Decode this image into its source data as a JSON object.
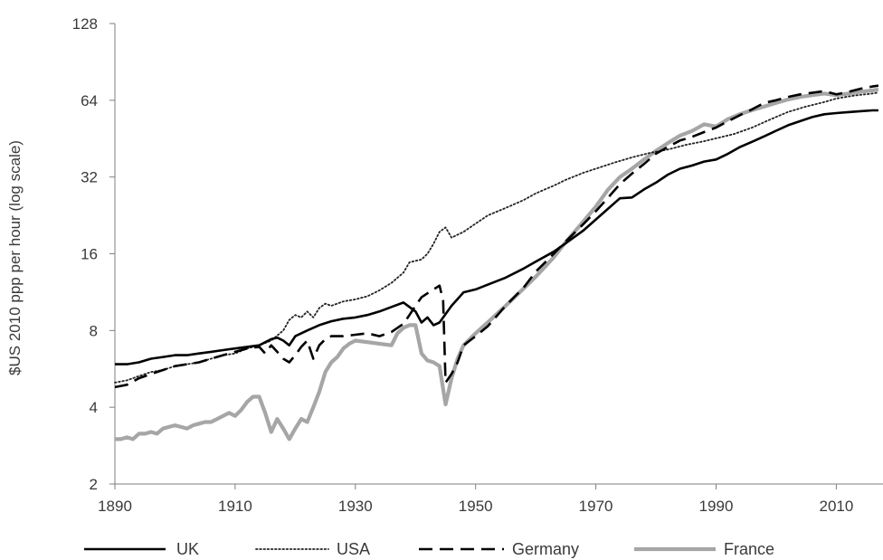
{
  "chart_data": {
    "type": "line",
    "title": "",
    "xlabel": "",
    "ylabel": "$US 2010 ppp per hour (log scale)",
    "y_scale": "log2",
    "xlim": [
      1890,
      2017
    ],
    "ylim": [
      2,
      128
    ],
    "x_ticks": [
      1890,
      1910,
      1930,
      1950,
      1970,
      1990,
      2010
    ],
    "y_ticks": [
      2,
      4,
      8,
      16,
      32,
      64,
      128
    ],
    "grid": false,
    "legend_position": "bottom",
    "series": [
      {
        "name": "UK",
        "color": "#000000",
        "style": "solid",
        "points": [
          [
            1890,
            5.9
          ],
          [
            1892,
            5.9
          ],
          [
            1894,
            6.0
          ],
          [
            1896,
            6.2
          ],
          [
            1898,
            6.3
          ],
          [
            1900,
            6.4
          ],
          [
            1902,
            6.4
          ],
          [
            1904,
            6.5
          ],
          [
            1906,
            6.6
          ],
          [
            1908,
            6.7
          ],
          [
            1910,
            6.8
          ],
          [
            1912,
            6.9
          ],
          [
            1914,
            7.0
          ],
          [
            1916,
            7.4
          ],
          [
            1917,
            7.5
          ],
          [
            1918,
            7.3
          ],
          [
            1919,
            7.0
          ],
          [
            1920,
            7.6
          ],
          [
            1922,
            8.0
          ],
          [
            1924,
            8.4
          ],
          [
            1926,
            8.7
          ],
          [
            1928,
            8.9
          ],
          [
            1930,
            9.0
          ],
          [
            1932,
            9.2
          ],
          [
            1934,
            9.5
          ],
          [
            1936,
            9.9
          ],
          [
            1938,
            10.3
          ],
          [
            1940,
            9.5
          ],
          [
            1941,
            8.6
          ],
          [
            1942,
            9.0
          ],
          [
            1943,
            8.4
          ],
          [
            1944,
            8.6
          ],
          [
            1946,
            10.0
          ],
          [
            1948,
            11.3
          ],
          [
            1950,
            11.6
          ],
          [
            1952,
            12.1
          ],
          [
            1955,
            12.9
          ],
          [
            1958,
            14.0
          ],
          [
            1960,
            14.9
          ],
          [
            1963,
            16.3
          ],
          [
            1965,
            17.6
          ],
          [
            1968,
            19.8
          ],
          [
            1970,
            21.8
          ],
          [
            1972,
            24.0
          ],
          [
            1974,
            26.4
          ],
          [
            1976,
            26.6
          ],
          [
            1978,
            28.6
          ],
          [
            1980,
            30.4
          ],
          [
            1982,
            32.7
          ],
          [
            1984,
            34.5
          ],
          [
            1986,
            35.5
          ],
          [
            1988,
            36.8
          ],
          [
            1990,
            37.5
          ],
          [
            1992,
            39.5
          ],
          [
            1994,
            42.0
          ],
          [
            1996,
            44.0
          ],
          [
            1998,
            46.2
          ],
          [
            2000,
            48.6
          ],
          [
            2002,
            51.1
          ],
          [
            2004,
            53.0
          ],
          [
            2006,
            55.0
          ],
          [
            2008,
            56.4
          ],
          [
            2010,
            57.0
          ],
          [
            2012,
            57.5
          ],
          [
            2014,
            58.0
          ],
          [
            2016,
            58.4
          ],
          [
            2017,
            58.4
          ]
        ]
      },
      {
        "name": "USA",
        "color": "#222222",
        "style": "dotted",
        "points": [
          [
            1890,
            5.0
          ],
          [
            1892,
            5.1
          ],
          [
            1894,
            5.3
          ],
          [
            1896,
            5.5
          ],
          [
            1898,
            5.6
          ],
          [
            1900,
            5.8
          ],
          [
            1902,
            5.9
          ],
          [
            1904,
            6.0
          ],
          [
            1906,
            6.2
          ],
          [
            1908,
            6.4
          ],
          [
            1910,
            6.5
          ],
          [
            1912,
            6.8
          ],
          [
            1914,
            7.0
          ],
          [
            1916,
            7.3
          ],
          [
            1918,
            8.0
          ],
          [
            1919,
            8.8
          ],
          [
            1920,
            9.2
          ],
          [
            1921,
            9.0
          ],
          [
            1922,
            9.5
          ],
          [
            1923,
            9.0
          ],
          [
            1924,
            9.8
          ],
          [
            1925,
            10.2
          ],
          [
            1926,
            10.0
          ],
          [
            1928,
            10.4
          ],
          [
            1930,
            10.6
          ],
          [
            1932,
            10.9
          ],
          [
            1934,
            11.5
          ],
          [
            1936,
            12.3
          ],
          [
            1938,
            13.5
          ],
          [
            1939,
            14.8
          ],
          [
            1940,
            15.0
          ],
          [
            1941,
            15.2
          ],
          [
            1942,
            16.0
          ],
          [
            1943,
            17.5
          ],
          [
            1944,
            19.5
          ],
          [
            1945,
            20.3
          ],
          [
            1946,
            18.5
          ],
          [
            1948,
            19.5
          ],
          [
            1950,
            21.0
          ],
          [
            1952,
            22.6
          ],
          [
            1955,
            24.2
          ],
          [
            1958,
            26.0
          ],
          [
            1960,
            27.6
          ],
          [
            1963,
            29.6
          ],
          [
            1965,
            31.2
          ],
          [
            1968,
            33.3
          ],
          [
            1970,
            34.5
          ],
          [
            1973,
            36.4
          ],
          [
            1976,
            38.2
          ],
          [
            1979,
            39.8
          ],
          [
            1982,
            41.0
          ],
          [
            1985,
            42.8
          ],
          [
            1988,
            44.2
          ],
          [
            1990,
            45.4
          ],
          [
            1993,
            47.2
          ],
          [
            1996,
            50.0
          ],
          [
            1999,
            53.8
          ],
          [
            2002,
            57.6
          ],
          [
            2005,
            60.5
          ],
          [
            2008,
            63.0
          ],
          [
            2010,
            65.0
          ],
          [
            2013,
            66.8
          ],
          [
            2016,
            68.0
          ],
          [
            2017,
            68.6
          ]
        ]
      },
      {
        "name": "Germany",
        "color": "#000000",
        "style": "dashed",
        "points": [
          [
            1890,
            4.8
          ],
          [
            1892,
            4.9
          ],
          [
            1894,
            5.2
          ],
          [
            1896,
            5.4
          ],
          [
            1898,
            5.6
          ],
          [
            1900,
            5.8
          ],
          [
            1902,
            5.9
          ],
          [
            1904,
            6.0
          ],
          [
            1906,
            6.2
          ],
          [
            1908,
            6.4
          ],
          [
            1910,
            6.6
          ],
          [
            1912,
            6.8
          ],
          [
            1914,
            6.9
          ],
          [
            1915,
            6.5
          ],
          [
            1916,
            7.0
          ],
          [
            1917,
            6.6
          ],
          [
            1918,
            6.2
          ],
          [
            1919,
            6.0
          ],
          [
            1920,
            6.4
          ],
          [
            1921,
            6.9
          ],
          [
            1922,
            7.3
          ],
          [
            1923,
            6.2
          ],
          [
            1924,
            7.0
          ],
          [
            1925,
            7.4
          ],
          [
            1926,
            7.6
          ],
          [
            1928,
            7.6
          ],
          [
            1930,
            7.7
          ],
          [
            1932,
            7.8
          ],
          [
            1934,
            7.6
          ],
          [
            1936,
            7.9
          ],
          [
            1938,
            8.5
          ],
          [
            1939,
            9.2
          ],
          [
            1940,
            10.0
          ],
          [
            1941,
            10.8
          ],
          [
            1942,
            11.2
          ],
          [
            1943,
            11.6
          ],
          [
            1944,
            12.0
          ],
          [
            1944.6,
            10.5
          ],
          [
            1945,
            5.0
          ],
          [
            1946,
            5.4
          ],
          [
            1947,
            6.0
          ],
          [
            1948,
            7.0
          ],
          [
            1950,
            7.6
          ],
          [
            1952,
            8.3
          ],
          [
            1955,
            10.0
          ],
          [
            1958,
            11.8
          ],
          [
            1960,
            13.6
          ],
          [
            1963,
            16.0
          ],
          [
            1965,
            17.9
          ],
          [
            1968,
            21.0
          ],
          [
            1970,
            23.5
          ],
          [
            1972,
            26.5
          ],
          [
            1974,
            30.0
          ],
          [
            1976,
            33.0
          ],
          [
            1978,
            36.0
          ],
          [
            1980,
            39.5
          ],
          [
            1982,
            42.0
          ],
          [
            1984,
            44.5
          ],
          [
            1986,
            46.0
          ],
          [
            1988,
            48.0
          ],
          [
            1990,
            50.0
          ],
          [
            1992,
            53.0
          ],
          [
            1994,
            56.0
          ],
          [
            1996,
            59.0
          ],
          [
            1998,
            62.5
          ],
          [
            2000,
            64.0
          ],
          [
            2002,
            66.0
          ],
          [
            2004,
            67.5
          ],
          [
            2006,
            68.5
          ],
          [
            2008,
            69.5
          ],
          [
            2010,
            67.5
          ],
          [
            2012,
            69.0
          ],
          [
            2014,
            71.0
          ],
          [
            2016,
            72.5
          ],
          [
            2017,
            73.0
          ]
        ]
      },
      {
        "name": "France",
        "color": "#a6a6a6",
        "style": "solid",
        "points": [
          [
            1890,
            3.0
          ],
          [
            1891,
            3.0
          ],
          [
            1892,
            3.05
          ],
          [
            1893,
            3.0
          ],
          [
            1894,
            3.15
          ],
          [
            1895,
            3.15
          ],
          [
            1896,
            3.2
          ],
          [
            1897,
            3.15
          ],
          [
            1898,
            3.3
          ],
          [
            1899,
            3.35
          ],
          [
            1900,
            3.4
          ],
          [
            1901,
            3.35
          ],
          [
            1902,
            3.3
          ],
          [
            1903,
            3.4
          ],
          [
            1904,
            3.45
          ],
          [
            1905,
            3.5
          ],
          [
            1906,
            3.5
          ],
          [
            1907,
            3.6
          ],
          [
            1908,
            3.7
          ],
          [
            1909,
            3.8
          ],
          [
            1910,
            3.7
          ],
          [
            1911,
            3.9
          ],
          [
            1912,
            4.2
          ],
          [
            1913,
            4.4
          ],
          [
            1914,
            4.4
          ],
          [
            1915,
            3.8
          ],
          [
            1916,
            3.2
          ],
          [
            1917,
            3.6
          ],
          [
            1918,
            3.3
          ],
          [
            1919,
            3.0
          ],
          [
            1920,
            3.3
          ],
          [
            1921,
            3.6
          ],
          [
            1922,
            3.5
          ],
          [
            1923,
            4.0
          ],
          [
            1924,
            4.6
          ],
          [
            1925,
            5.5
          ],
          [
            1926,
            6.0
          ],
          [
            1927,
            6.3
          ],
          [
            1928,
            6.8
          ],
          [
            1929,
            7.1
          ],
          [
            1930,
            7.3
          ],
          [
            1932,
            7.2
          ],
          [
            1934,
            7.1
          ],
          [
            1936,
            7.0
          ],
          [
            1937,
            7.8
          ],
          [
            1938,
            8.2
          ],
          [
            1939,
            8.4
          ],
          [
            1940,
            8.4
          ],
          [
            1941,
            6.5
          ],
          [
            1942,
            6.1
          ],
          [
            1943,
            6.0
          ],
          [
            1944,
            5.8
          ],
          [
            1945,
            4.1
          ],
          [
            1946,
            5.2
          ],
          [
            1947,
            6.2
          ],
          [
            1948,
            7.0
          ],
          [
            1950,
            7.8
          ],
          [
            1952,
            8.6
          ],
          [
            1955,
            10.0
          ],
          [
            1958,
            11.7
          ],
          [
            1960,
            13.0
          ],
          [
            1963,
            15.5
          ],
          [
            1965,
            17.8
          ],
          [
            1968,
            21.5
          ],
          [
            1970,
            24.5
          ],
          [
            1972,
            28.5
          ],
          [
            1974,
            32.0
          ],
          [
            1976,
            34.5
          ],
          [
            1978,
            37.5
          ],
          [
            1980,
            40.5
          ],
          [
            1982,
            43.5
          ],
          [
            1984,
            46.5
          ],
          [
            1986,
            48.5
          ],
          [
            1988,
            51.5
          ],
          [
            1990,
            50.5
          ],
          [
            1992,
            54.0
          ],
          [
            1994,
            56.5
          ],
          [
            1996,
            58.5
          ],
          [
            1998,
            60.5
          ],
          [
            2000,
            62.5
          ],
          [
            2002,
            64.5
          ],
          [
            2004,
            66.0
          ],
          [
            2006,
            67.0
          ],
          [
            2008,
            68.0
          ],
          [
            2010,
            67.0
          ],
          [
            2012,
            68.0
          ],
          [
            2014,
            69.0
          ],
          [
            2016,
            70.0
          ],
          [
            2017,
            70.5
          ]
        ]
      }
    ]
  }
}
